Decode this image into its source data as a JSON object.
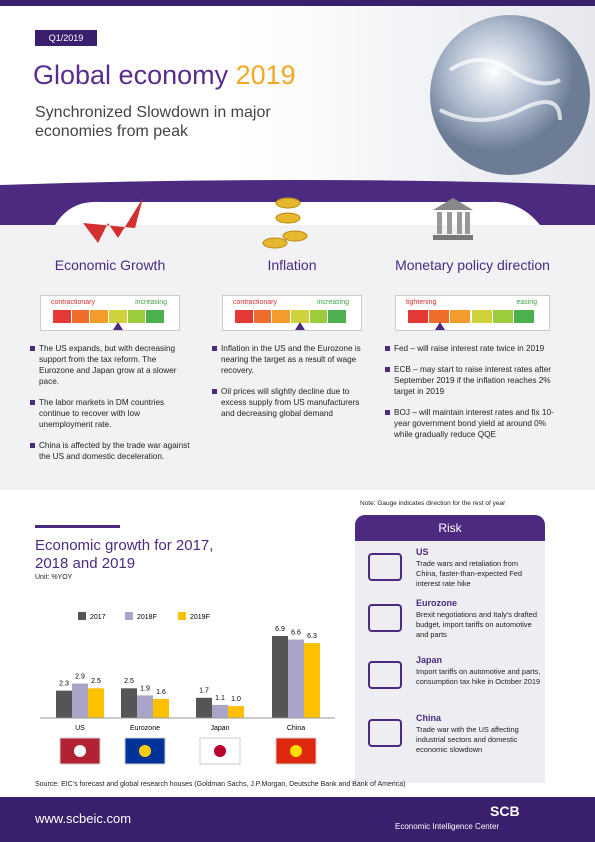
{
  "header": {
    "tag": "Q1/2019",
    "title_main": "Global economy",
    "title_year": "2019",
    "subtitle": "Synchronized Slowdown in major economies from peak"
  },
  "columns": [
    {
      "heading": "Economic Growth",
      "gauge_low": "contractionary",
      "gauge_high": "increasing",
      "bullets": [
        "The US expands, but with decreasing support from the tax reform. The Eurozone and Japan grow at a slower pace.",
        "The labor markets in DM countries continue to recover with low unemployment rate.",
        "China is affected by the trade war against the US and domestic deceleration."
      ]
    },
    {
      "heading": "Inflation",
      "gauge_low": "contractionary",
      "gauge_high": "increasing",
      "bullets": [
        "Inflation in the US and the Eurozone is nearing the target as a result of wage recovery.",
        "Oil prices will slightly decline due to excess supply from US manufacturers and decreasing global demand"
      ]
    },
    {
      "heading": "Monetary policy direction",
      "gauge_low": "tightening",
      "gauge_high": "easing",
      "bullets": [
        "Fed – will raise interest rate twice in 2019",
        "ECB – may start to raise interest rates after September 2019 if the inflation reaches 2% target in 2019",
        "BOJ – will maintain interest rates and fix 10-year government bond yield at around 0% while gradually reduce QQE"
      ]
    }
  ],
  "note": "Note: Gauge indicates direction for the rest of year",
  "chart_data": {
    "type": "bar",
    "title": "Economic growth for 2017, 2018 and 2019",
    "unit": "Unit: %YOY",
    "categories": [
      "US",
      "Eurozone",
      "Japan",
      "China"
    ],
    "series": [
      {
        "name": "2017",
        "color": "#555555",
        "values": [
          2.3,
          2.5,
          1.7,
          6.9
        ],
        "value_labels": [
          "2.3",
          "2.5",
          "1.7",
          "6.9"
        ]
      },
      {
        "name": "2018F",
        "color": "#a9a4c8",
        "values": [
          2.9,
          1.9,
          1.1,
          6.6
        ],
        "value_labels": [
          "2.9",
          "1.9",
          "1.1",
          "6.6"
        ]
      },
      {
        "name": "2019F",
        "color": "#ffc000",
        "values": [
          2.5,
          1.6,
          1.0,
          6.3
        ],
        "value_labels": [
          "2.5",
          "1.6",
          "1.0",
          "6.3"
        ]
      }
    ]
  },
  "risk": {
    "title": "Risk",
    "items": [
      {
        "name": "US",
        "text": "Trade wars and retaliation from China, faster-than-expected Fed interest rate hike"
      },
      {
        "name": "Eurozone",
        "text": "Brexit negotiations and Italy's drafted budget, import tariffs on automotive and parts"
      },
      {
        "name": "Japan",
        "text": "Import tariffs on automotive and parts, consumption tax hike in October 2019"
      },
      {
        "name": "China",
        "text": "Trade war with the US affecting industrial sectors and domestic economic slowdown"
      }
    ]
  },
  "source": "Source: EIC's forecast and global research houses (Goldman Sachs, J.P.Morgan, Deutsche Bank and Bank of America)",
  "footer": {
    "url": "www.scbeic.com",
    "brand": "SCB",
    "subbrand": "Economic Intelligence Center"
  }
}
